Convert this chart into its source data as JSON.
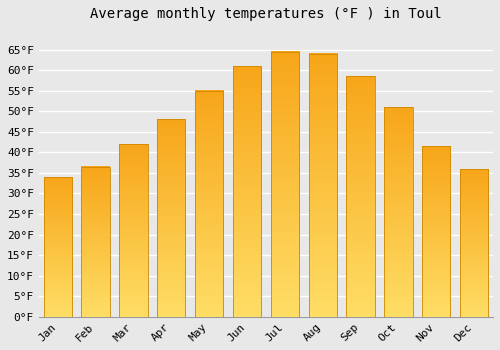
{
  "title": "Average monthly temperatures (°F ) in Toul",
  "months": [
    "Jan",
    "Feb",
    "Mar",
    "Apr",
    "May",
    "Jun",
    "Jul",
    "Aug",
    "Sep",
    "Oct",
    "Nov",
    "Dec"
  ],
  "values": [
    34,
    36.5,
    42,
    48,
    55,
    61,
    64.5,
    64,
    58.5,
    51,
    41.5,
    36
  ],
  "bar_color_top": "#F5A623",
  "bar_color_bottom": "#FFD966",
  "ylim": [
    0,
    70
  ],
  "yticks": [
    0,
    5,
    10,
    15,
    20,
    25,
    30,
    35,
    40,
    45,
    50,
    55,
    60,
    65
  ],
  "ytick_labels": [
    "0°F",
    "5°F",
    "10°F",
    "15°F",
    "20°F",
    "25°F",
    "30°F",
    "35°F",
    "40°F",
    "45°F",
    "50°F",
    "55°F",
    "60°F",
    "65°F"
  ],
  "background_color": "#e8e8e8",
  "grid_color": "#ffffff",
  "title_fontsize": 10,
  "tick_fontsize": 8,
  "bar_edge_color": "#CC8800"
}
